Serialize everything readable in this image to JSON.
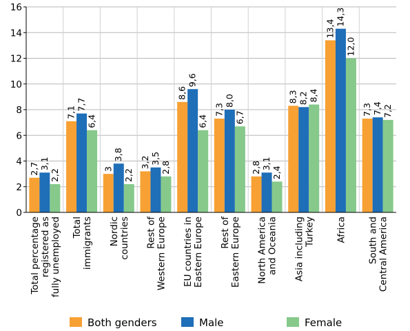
{
  "chart_data": {
    "type": "bar",
    "ylim": [
      0,
      16
    ],
    "yticks": [
      "0",
      "2",
      "4",
      "6",
      "8",
      "10",
      "12",
      "14",
      "16"
    ],
    "grid": true,
    "legend_position": "bottom",
    "categories": [
      [
        "Total percentage",
        "registered as",
        "fully unemployed"
      ],
      [
        "Total",
        "immigrants"
      ],
      [
        "Nordic",
        "countries"
      ],
      [
        "Rest of",
        "Western Europe"
      ],
      [
        "EU countries in",
        "Eastern Europe"
      ],
      [
        "Rest of",
        "Eastern Europe"
      ],
      [
        "North America",
        "and Oceania"
      ],
      [
        "Asia including",
        "Turkey"
      ],
      [
        "Africa"
      ],
      [
        "South and",
        "Central America"
      ]
    ],
    "series": [
      {
        "name": "Both genders",
        "color": "#F7A134",
        "values": [
          2.7,
          7.1,
          3.0,
          3.2,
          8.6,
          7.3,
          2.8,
          8.3,
          13.4,
          7.3
        ],
        "labels": [
          "2,7",
          "7,1",
          "3",
          "3,2",
          "8,6",
          "7,3",
          "2,8",
          "8,3",
          "13,4",
          "7,3"
        ]
      },
      {
        "name": "Male",
        "color": "#1F6EB8",
        "values": [
          3.1,
          7.7,
          3.8,
          3.5,
          9.6,
          8.0,
          3.1,
          8.2,
          14.3,
          7.4
        ],
        "labels": [
          "3,1",
          "7,7",
          "3,8",
          "3,5",
          "9,6",
          "8,0",
          "3,1",
          "8,2",
          "14,3",
          "7,4"
        ]
      },
      {
        "name": "Female",
        "color": "#86C98B",
        "values": [
          2.2,
          6.4,
          2.2,
          2.8,
          6.4,
          6.7,
          2.4,
          8.4,
          12.0,
          7.2
        ],
        "labels": [
          "2,2",
          "6,4",
          "2,2",
          "2,8",
          "6,4",
          "6,7",
          "2,4",
          "8,4",
          "12,0",
          "7,2"
        ]
      }
    ]
  }
}
